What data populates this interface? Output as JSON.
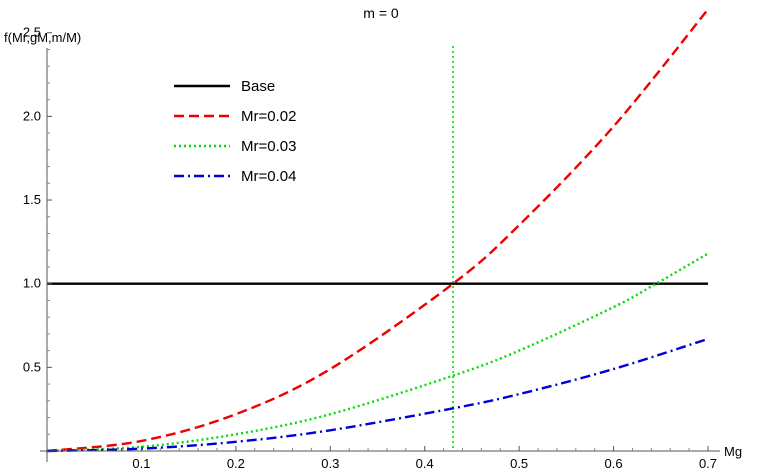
{
  "chart_data": {
    "type": "line",
    "title": "m = 0",
    "xlabel": "Mg",
    "ylabel": "f(Mr,gM,m/M)",
    "xlim": [
      0,
      0.7
    ],
    "ylim": [
      0,
      2.6
    ],
    "x_ticks": [
      0.1,
      0.2,
      0.3,
      0.4,
      0.5,
      0.6,
      0.7
    ],
    "x_tick_labels": [
      "0.1",
      "0.2",
      "0.3",
      "0.4",
      "0.5",
      "0.6",
      "0.7"
    ],
    "y_ticks": [
      0.5,
      1.0,
      1.5,
      2.0,
      2.5
    ],
    "y_tick_labels": [
      "0.5",
      "1.0",
      "1.5",
      "2.0",
      "2.5"
    ],
    "legend_position": "top-left",
    "vertical_line": {
      "x": 0.43,
      "color": "#00dd00",
      "style": "dotted"
    },
    "series": [
      {
        "name": "Base",
        "color": "#000000",
        "style": "solid",
        "x": [
          0,
          0.7
        ],
        "y": [
          1.0,
          1.0
        ]
      },
      {
        "name": "Mr=0.02",
        "color": "#ee0000",
        "style": "dashed",
        "x": [
          0,
          0.1,
          0.2,
          0.3,
          0.43,
          0.5,
          0.6,
          0.7
        ],
        "y": [
          0,
          0.06,
          0.22,
          0.49,
          1.0,
          1.35,
          1.94,
          2.64
        ]
      },
      {
        "name": "Mr=0.03",
        "color": "#00dd00",
        "style": "dotted",
        "x": [
          0,
          0.1,
          0.2,
          0.3,
          0.43,
          0.5,
          0.6,
          0.645,
          0.7
        ],
        "y": [
          0,
          0.025,
          0.1,
          0.22,
          0.45,
          0.6,
          0.86,
          1.0,
          1.18
        ]
      },
      {
        "name": "Mr=0.04",
        "color": "#0000dd",
        "style": "dashdot",
        "x": [
          0,
          0.1,
          0.2,
          0.3,
          0.43,
          0.5,
          0.6,
          0.7
        ],
        "y": [
          0,
          0.014,
          0.055,
          0.124,
          0.255,
          0.34,
          0.49,
          0.67
        ]
      }
    ]
  }
}
